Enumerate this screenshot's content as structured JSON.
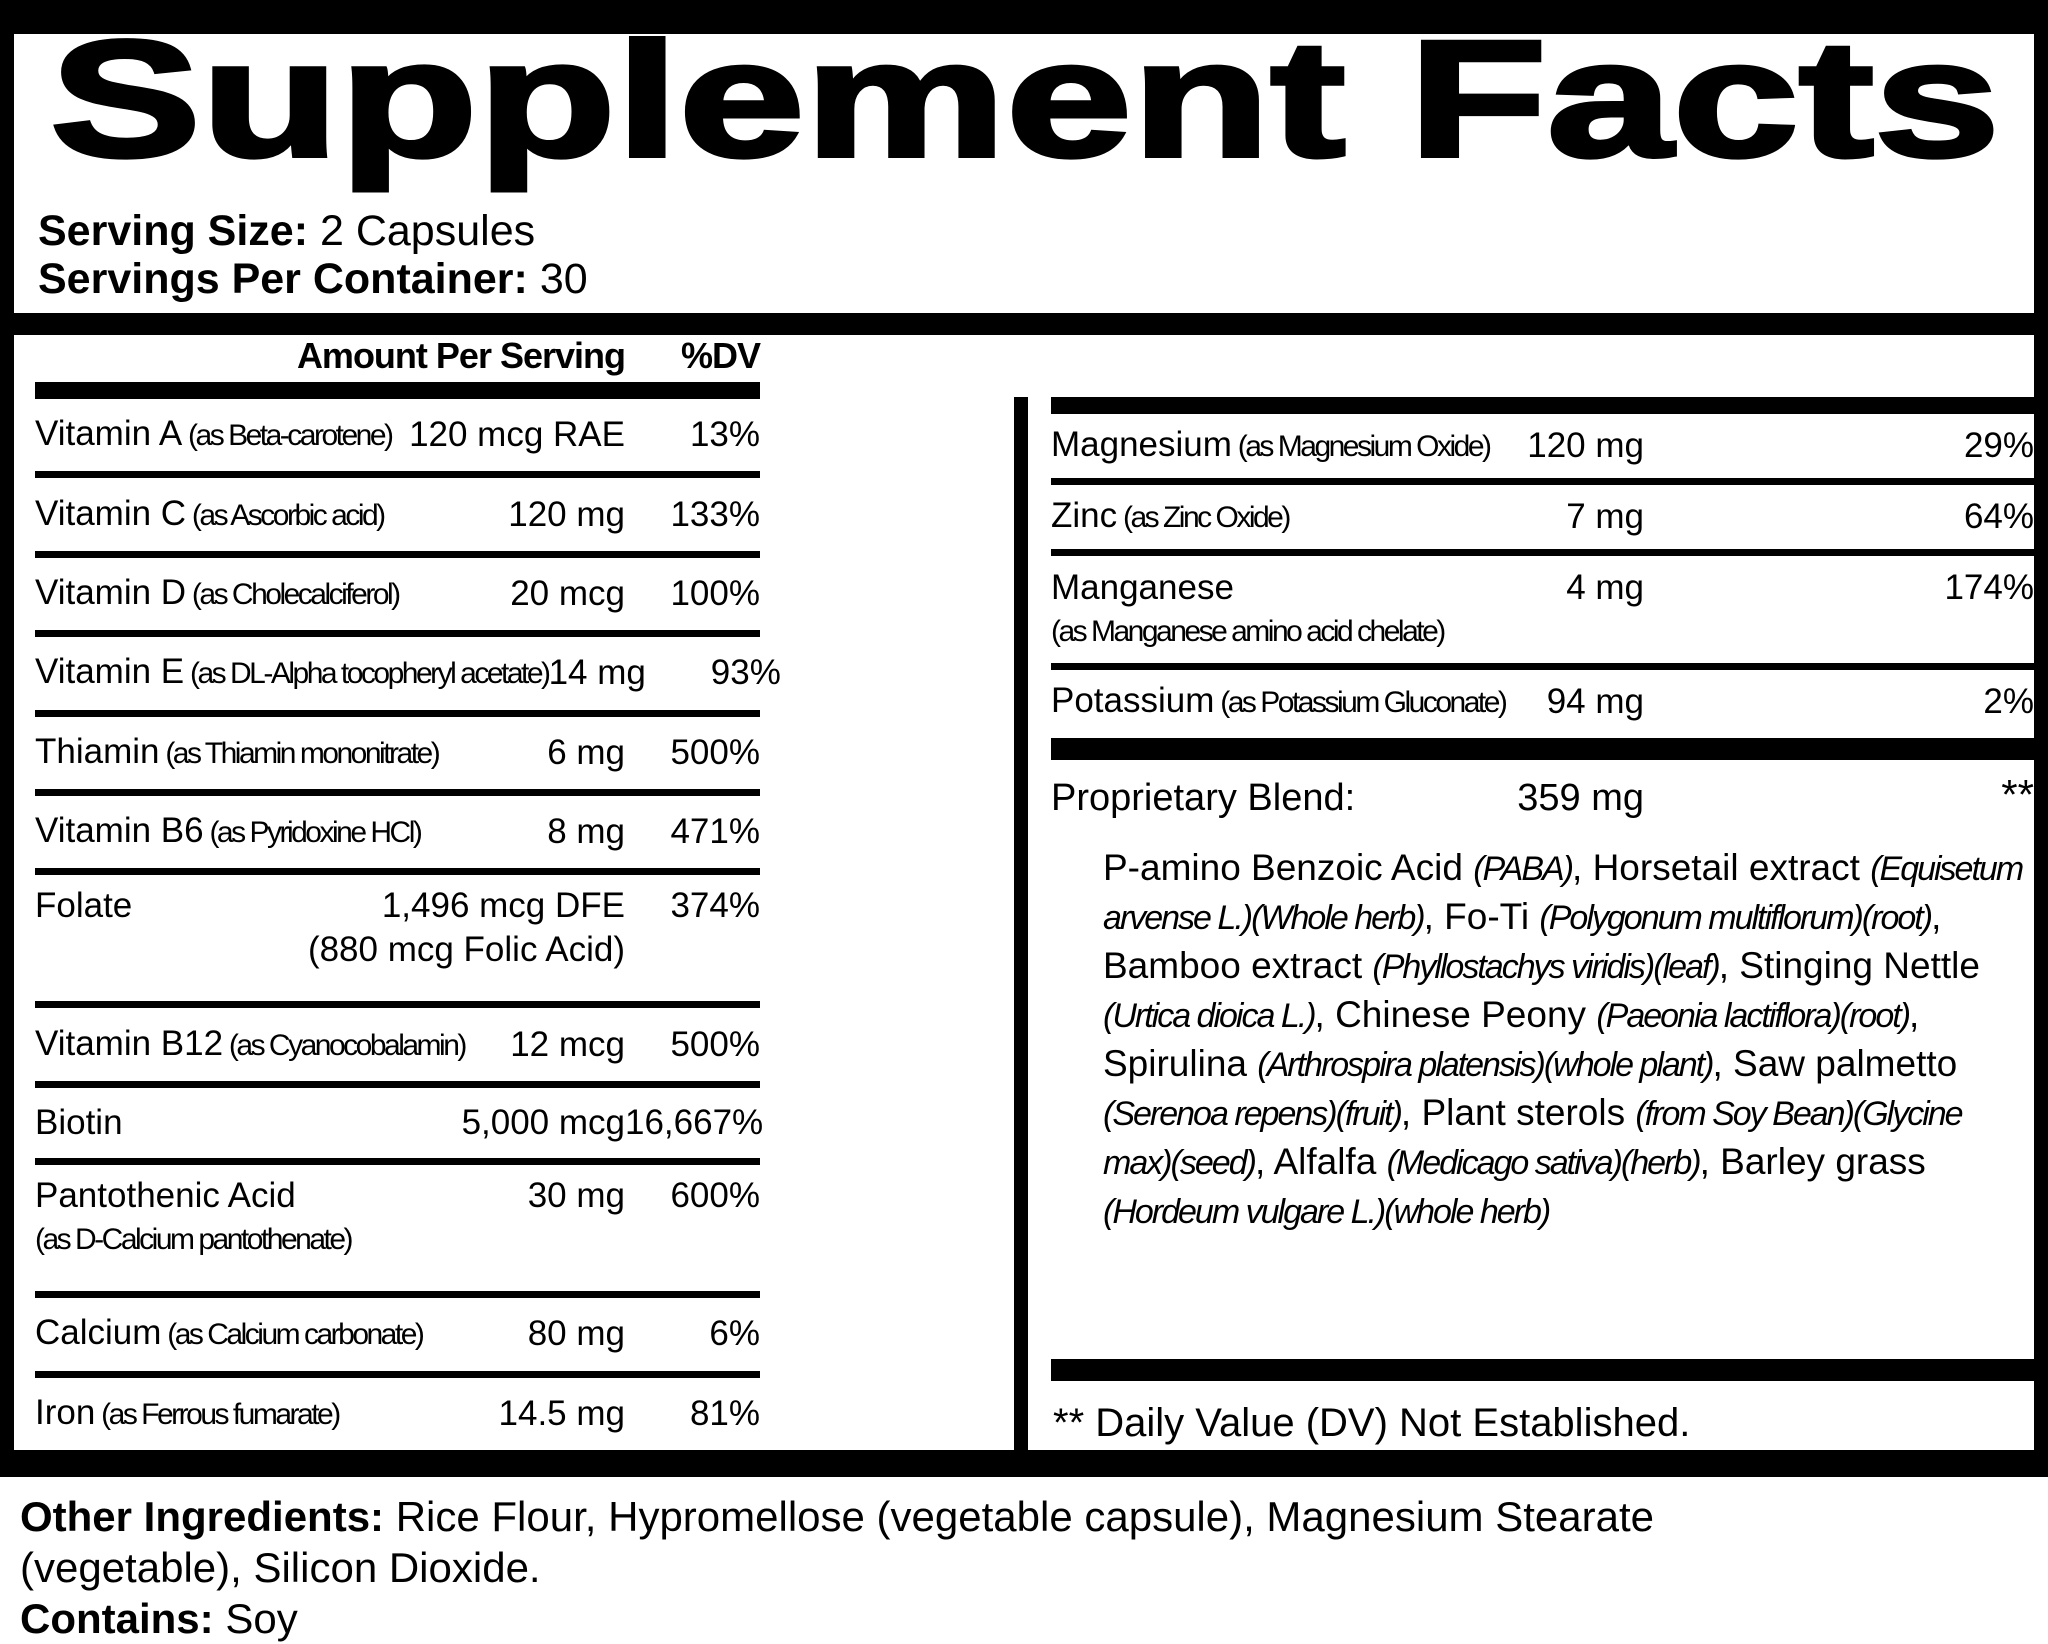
{
  "colors": {
    "ink": "#000000",
    "paper": "#ffffff"
  },
  "title": "Supplement Facts",
  "serving": {
    "size_label": "Serving Size:",
    "size_value": " 2 Capsules",
    "container_label": "Servings Per Container:",
    "container_value": " 30"
  },
  "columns": {
    "header": {
      "amount": "Amount Per Serving",
      "dv": "%DV"
    },
    "left_rows": [
      {
        "name": "Vitamin A",
        "form": "(as Beta-carotene)",
        "amount": "120 mcg RAE",
        "dv": "13%"
      },
      {
        "name": "Vitamin C",
        "form": "(as Ascorbic acid)",
        "amount": "120 mg",
        "dv": "133%"
      },
      {
        "name": "Vitamin D",
        "form": "(as Cholecalciferol)",
        "amount": "20 mcg",
        "dv": "100%"
      },
      {
        "name": "Vitamin E",
        "form": "(as DL-Alpha tocopheryl acetate)",
        "amount": "14 mg",
        "dv": "93%"
      },
      {
        "name": "Thiamin",
        "form": "(as Thiamin mononitrate)",
        "amount": "6 mg",
        "dv": "500%"
      },
      {
        "name": "Vitamin B6",
        "form": "(as Pyridoxine HCl)",
        "amount": "8 mg",
        "dv": "471%"
      },
      {
        "name": "Folate",
        "form": "",
        "amount": "1,496 mcg DFE",
        "amount2": "(880 mcg Folic Acid)",
        "dv": "374%"
      },
      {
        "name": "Vitamin B12",
        "form": "(as Cyanocobalamin)",
        "amount": "12 mcg",
        "dv": "500%"
      },
      {
        "name": "Biotin",
        "form": "",
        "amount": "5,000 mcg",
        "dv": "16,667%"
      },
      {
        "name": "Pantothenic Acid",
        "form": "(as  D-Calcium pantothenate)",
        "form_break": true,
        "amount": "30 mg",
        "dv": "600%"
      },
      {
        "name": "Calcium",
        "form": "(as Calcium carbonate)",
        "amount": "80 mg",
        "dv": "6%"
      },
      {
        "name": "Iron",
        "form": "(as Ferrous fumarate)",
        "amount": "14.5 mg",
        "dv": "81%"
      }
    ],
    "right_rows": [
      {
        "name": "Magnesium",
        "form": "(as Magnesium Oxide)",
        "amount": "120 mg",
        "dv": "29%"
      },
      {
        "name": "Zinc",
        "form": "(as Zinc Oxide)",
        "amount": "7 mg",
        "dv": "64%"
      },
      {
        "name": "Manganese",
        "form": "(as Manganese amino acid chelate)",
        "form_break": true,
        "amount": "4 mg",
        "dv": "174%"
      },
      {
        "name": "Potassium",
        "form": "(as Potassium Gluconate)",
        "amount": "94 mg",
        "dv": "2%"
      }
    ],
    "blend": {
      "name": "Proprietary Blend:",
      "amount": "359 mg",
      "dv": "**",
      "ingredients": [
        {
          "t": "P-amino Benzoic Acid ",
          "i": false
        },
        {
          "t": "(PABA)",
          "i": true
        },
        {
          "t": ", Horsetail extract ",
          "i": false
        },
        {
          "t": "(Equisetum arvense L.)(Whole herb)",
          "i": true
        },
        {
          "t": ", Fo-Ti ",
          "i": false
        },
        {
          "t": "(Polygonum multiflorum)(root)",
          "i": true
        },
        {
          "t": ", Bamboo extract ",
          "i": false
        },
        {
          "t": "(Phyllostachys viridis)(leaf)",
          "i": true
        },
        {
          "t": ", Stinging Nettle ",
          "i": false
        },
        {
          "t": "(Urtica dioica L.)",
          "i": true
        },
        {
          "t": ", Chinese Peony ",
          "i": false
        },
        {
          "t": "(Paeonia lactiflora)(root)",
          "i": true
        },
        {
          "t": ", Spirulina ",
          "i": false
        },
        {
          "t": "(Arthrospira platensis)(whole plant)",
          "i": true
        },
        {
          "t": ", Saw palmetto ",
          "i": false
        },
        {
          "t": "(Serenoa repens)(fruit)",
          "i": true
        },
        {
          "t": ", Plant sterols ",
          "i": false
        },
        {
          "t": "(from Soy Bean)(Glycine max)(seed)",
          "i": true
        },
        {
          "t": ", Alfalfa ",
          "i": false
        },
        {
          "t": "(Medicago sativa)(herb)",
          "i": true
        },
        {
          "t": ", Barley grass ",
          "i": false
        },
        {
          "t": "(Hordeum vulgare L.)(whole herb)",
          "i": true
        }
      ]
    },
    "dv_note": "** Daily Value (DV) Not Established."
  },
  "footer": {
    "other_label": "Other Ingredients:",
    "other_value": " Rice Flour, Hypromellose (vegetable capsule), Magnesium Stearate (vegetable), Silicon Dioxide.",
    "contains_label": "Contains:",
    "contains_value": " Soy"
  }
}
